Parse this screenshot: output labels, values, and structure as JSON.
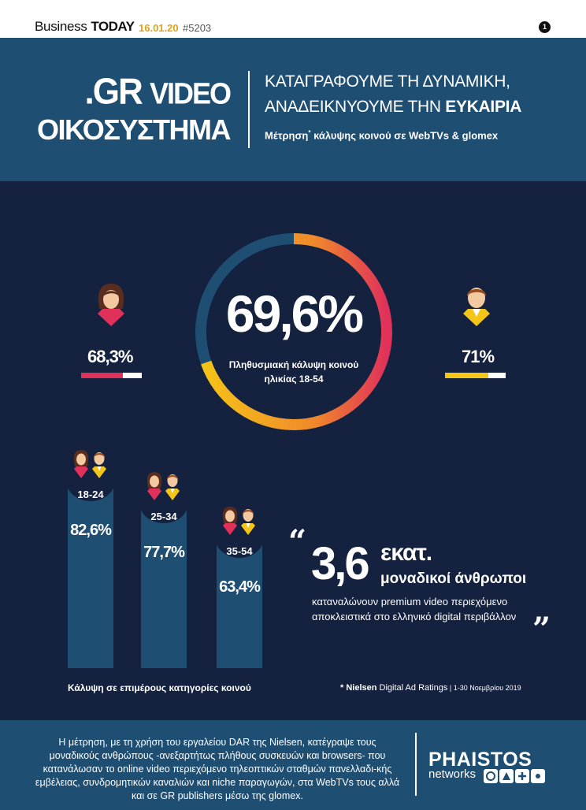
{
  "topbar": {
    "brand_light": "Business",
    "brand_bold": "TODAY",
    "date": "16.01.20",
    "issue": "#5203",
    "page_number": "1"
  },
  "header": {
    "title_line1_a": ".GR",
    "title_line1_b": "VIDEO",
    "title_line2": "ΟΙΚΟΣΥΣΤΗΜΑ",
    "tagline1": "ΚΑΤΑΓΡΑΦΟΥΜΕ ΤΗ ΔΥΝΑΜΙΚΗ,",
    "tagline2_a": "ΑΝΑΔΕΙΚΝΥΟΥΜΕ ΤΗΝ",
    "tagline2_b": "ΕΥΚΑΙΡΙΑ",
    "subtitle_a": "Μέτρηση",
    "subtitle_star": "*",
    "subtitle_b": " κάλυψης κοινού σε WebTVs & glomex"
  },
  "main": {
    "coverage_value": "69,6%",
    "coverage_fraction": 0.696,
    "coverage_caption_1": "Πληθυσμιακή κάλυψη κοινού",
    "coverage_caption_2": "ηλικίας 18-54",
    "women": {
      "label": "68,3%",
      "fraction": 0.683,
      "color": "#e0315a",
      "icon": "woman-icon"
    },
    "men": {
      "label": "71%",
      "fraction": 0.71,
      "color": "#f5c518",
      "icon": "man-icon"
    },
    "age_groups": [
      {
        "label": "18-24",
        "value": "82,6%",
        "fraction": 0.826
      },
      {
        "label": "25-34",
        "value": "77,7%",
        "fraction": 0.777
      },
      {
        "label": "35-54",
        "value": "63,4%",
        "fraction": 0.634
      }
    ],
    "age_caption": "Κάλυψη σε επιμέρους κατηγορίες κοινού",
    "quote": {
      "open_mark": "“",
      "close_mark": "”",
      "number": "3,6",
      "unit": "εκατ.",
      "line1": "μοναδικοί άνθρωποι",
      "line2": "καταναλώνουν premium video περιεχόμενο",
      "line3": "αποκλειστικά στο ελληνικό digital περιβάλλον"
    },
    "footnote": {
      "star": "*",
      "source_bold": "Nielsen",
      "source_rest": " Digital Ad Ratings",
      "period": " | 1-30 Νοεμβρίου 2019"
    }
  },
  "footer": {
    "text": "Η μέτρηση, με τη χρήση του εργαλείου DAR της Nielsen, κατέγραψε τους μοναδικούς ανθρώπους -ανεξαρτήτως πλήθους συσκευών και browsers- που κατανάλωσαν το online video περιεχόμενο τηλεοπτικών σταθμών πανελλαδι-κής εμβέλειας, συνδρομητικών καναλιών και niche παραγωγών, στα WebTVs τους αλλά και σε GR publishers μέσω της glomex.",
    "logo_name": "PHAISTOS",
    "logo_sub": "networks"
  },
  "colors": {
    "header_blue": "#1f4e73",
    "panel_navy": "#14213f",
    "accent_pink": "#e0315a",
    "accent_yellow": "#f5c518",
    "accent_orange": "#f08a2a"
  }
}
